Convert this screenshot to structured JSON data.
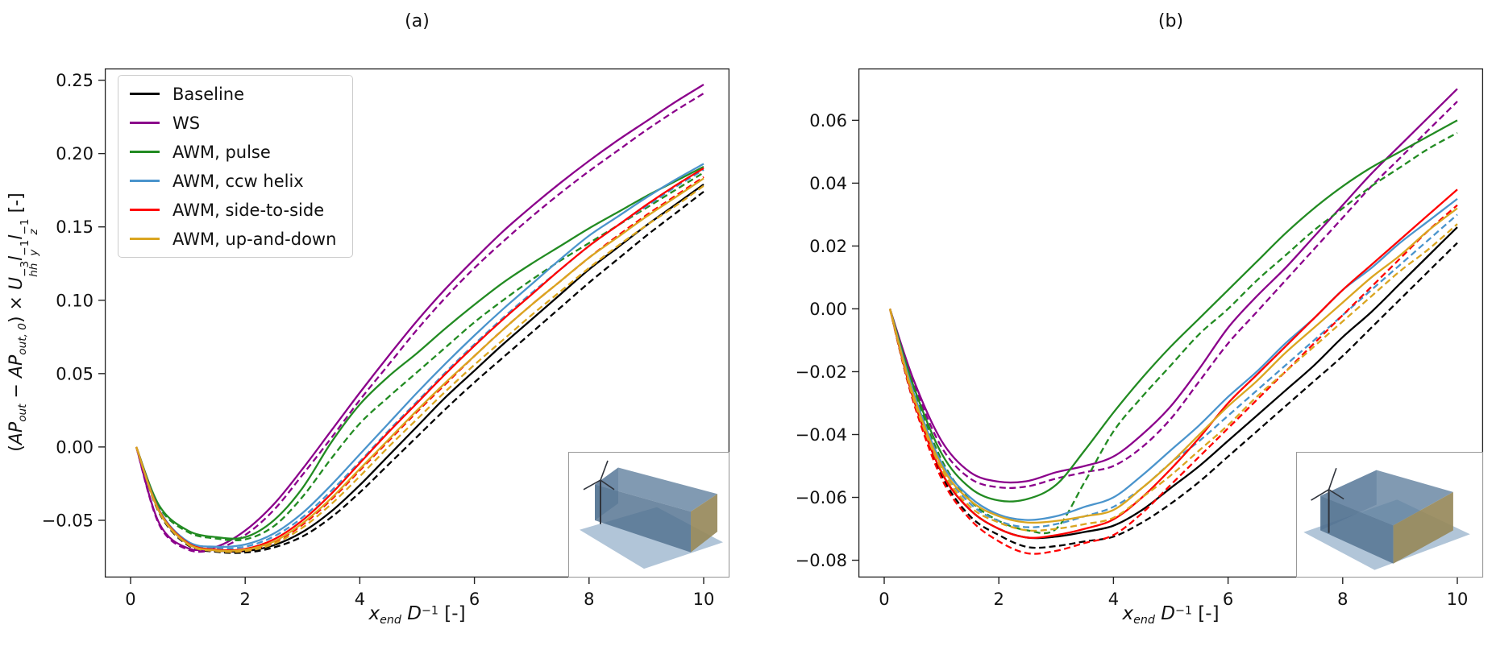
{
  "figure": {
    "background": "#ffffff"
  },
  "legend": {
    "items": [
      {
        "label": "Baseline",
        "color": "#000000"
      },
      {
        "label": "WS",
        "color": "#8B008B"
      },
      {
        "label": "AWM, pulse",
        "color": "#228B22"
      },
      {
        "label": "AWM, ccw helix",
        "color": "#4A94CC"
      },
      {
        "label": "AWM, side-to-side",
        "color": "#FF0000"
      },
      {
        "label": "AWM, up-and-down",
        "color": "#DAA520"
      }
    ]
  },
  "chart_data": [
    {
      "type": "line",
      "title": "(a)",
      "xlabel_segments": [
        {
          "t": "x",
          "i": true,
          "sub": "end"
        },
        {
          "t": " "
        },
        {
          "t": "D",
          "i": true,
          "sup": "−1"
        },
        {
          "t": " [-]"
        }
      ],
      "ylabel_segments": [
        {
          "t": "("
        },
        {
          "t": "AP",
          "i": true,
          "sub": "out"
        },
        {
          "t": " − "
        },
        {
          "t": "AP",
          "i": true,
          "sub": "out, 0"
        },
        {
          "t": ") × "
        },
        {
          "t": "U",
          "i": true,
          "sub": "hh",
          "sup": "−3"
        },
        {
          "t": "l",
          "i": true,
          "sub": "y",
          "sup": "−1"
        },
        {
          "t": "l",
          "i": true,
          "sub": "z",
          "sup": "−1"
        },
        {
          "t": " [-]"
        }
      ],
      "xlim": [
        -0.45,
        10.45
      ],
      "ylim": [
        -0.089,
        0.258
      ],
      "xticks": [
        0,
        2,
        4,
        6,
        8,
        10
      ],
      "yticks": [
        -0.05,
        0.0,
        0.05,
        0.1,
        0.15,
        0.2,
        0.25
      ],
      "x": [
        0.1,
        0.5,
        1,
        1.5,
        2,
        2.5,
        3,
        3.5,
        4,
        4.5,
        5,
        5.5,
        6,
        6.5,
        7,
        7.5,
        8,
        8.5,
        9,
        9.5,
        10
      ],
      "series": [
        {
          "name": "Baseline",
          "color": "#000000",
          "style": "solid",
          "values": [
            0,
            -0.044,
            -0.066,
            -0.0705,
            -0.071,
            -0.067,
            -0.058,
            -0.044,
            -0.026,
            -0.006,
            0.014,
            0.034,
            0.052,
            0.07,
            0.087,
            0.104,
            0.121,
            0.136,
            0.151,
            0.165,
            0.179
          ]
        },
        {
          "name": "Baseline (dashed)",
          "color": "#000000",
          "style": "dashed",
          "values": [
            0,
            -0.045,
            -0.067,
            -0.0715,
            -0.072,
            -0.0685,
            -0.061,
            -0.048,
            -0.031,
            -0.012,
            0.007,
            0.026,
            0.044,
            0.061,
            0.078,
            0.095,
            0.112,
            0.128,
            0.144,
            0.159,
            0.174
          ]
        },
        {
          "name": "WS",
          "color": "#8B008B",
          "style": "solid",
          "values": [
            0,
            -0.052,
            -0.069,
            -0.068,
            -0.057,
            -0.039,
            -0.015,
            0.011,
            0.037,
            0.062,
            0.086,
            0.108,
            0.128,
            0.147,
            0.164,
            0.18,
            0.195,
            0.209,
            0.222,
            0.235,
            0.247
          ]
        },
        {
          "name": "WS (dashed)",
          "color": "#8B008B",
          "style": "dashed",
          "values": [
            0,
            -0.053,
            -0.07,
            -0.0695,
            -0.06,
            -0.043,
            -0.019,
            0.006,
            0.032,
            0.056,
            0.08,
            0.102,
            0.122,
            0.14,
            0.157,
            0.173,
            0.188,
            0.202,
            0.216,
            0.229,
            0.241
          ]
        },
        {
          "name": "AWM, pulse",
          "color": "#228B22",
          "style": "solid",
          "values": [
            0,
            -0.04,
            -0.057,
            -0.0615,
            -0.0615,
            -0.05,
            -0.028,
            0.003,
            0.029,
            0.048,
            0.064,
            0.081,
            0.097,
            0.112,
            0.125,
            0.137,
            0.149,
            0.16,
            0.171,
            0.181,
            0.191
          ]
        },
        {
          "name": "AWM, pulse (dashed)",
          "color": "#228B22",
          "style": "dashed",
          "values": [
            0,
            -0.041,
            -0.058,
            -0.0625,
            -0.063,
            -0.054,
            -0.034,
            -0.008,
            0.016,
            0.034,
            0.051,
            0.068,
            0.085,
            0.1,
            0.114,
            0.127,
            0.139,
            0.151,
            0.163,
            0.175,
            0.187
          ]
        },
        {
          "name": "AWM, ccw helix",
          "color": "#4A94CC",
          "style": "solid",
          "values": [
            0,
            -0.043,
            -0.0645,
            -0.068,
            -0.0665,
            -0.059,
            -0.045,
            -0.026,
            -0.005,
            0.016,
            0.037,
            0.057,
            0.076,
            0.094,
            0.111,
            0.128,
            0.144,
            0.157,
            0.17,
            0.182,
            0.193
          ]
        },
        {
          "name": "AWM, ccw helix (dashed)",
          "color": "#4A94CC",
          "style": "dashed",
          "values": [
            0,
            -0.0435,
            -0.065,
            -0.069,
            -0.068,
            -0.061,
            -0.048,
            -0.03,
            -0.01,
            0.011,
            0.031,
            0.051,
            0.07,
            0.088,
            0.105,
            0.121,
            0.137,
            0.151,
            0.164,
            0.177,
            0.189
          ]
        },
        {
          "name": "AWM, side-to-side",
          "color": "#FF0000",
          "style": "solid",
          "values": [
            0,
            -0.0435,
            -0.0655,
            -0.07,
            -0.0695,
            -0.063,
            -0.05,
            -0.032,
            -0.011,
            0.01,
            0.03,
            0.05,
            0.069,
            0.087,
            0.104,
            0.121,
            0.137,
            0.151,
            0.165,
            0.178,
            0.19
          ]
        },
        {
          "name": "AWM, side-to-side (dashed)",
          "color": "#FF0000",
          "style": "dashed",
          "values": [
            0,
            -0.044,
            -0.066,
            -0.0705,
            -0.0705,
            -0.065,
            -0.053,
            -0.036,
            -0.016,
            0.004,
            0.024,
            0.043,
            0.062,
            0.08,
            0.097,
            0.113,
            0.129,
            0.144,
            0.158,
            0.171,
            0.184
          ]
        },
        {
          "name": "AWM, up-and-down",
          "color": "#DAA520",
          "style": "solid",
          "values": [
            0,
            -0.044,
            -0.066,
            -0.0705,
            -0.07,
            -0.0645,
            -0.052,
            -0.035,
            -0.015,
            0.005,
            0.025,
            0.044,
            0.062,
            0.08,
            0.097,
            0.113,
            0.129,
            0.143,
            0.157,
            0.17,
            0.183
          ]
        },
        {
          "name": "AWM, up-and-down (dashed)",
          "color": "#DAA520",
          "style": "dashed",
          "values": [
            0,
            -0.0445,
            -0.0665,
            -0.071,
            -0.071,
            -0.066,
            -0.055,
            -0.039,
            -0.02,
            0,
            0.019,
            0.038,
            0.056,
            0.073,
            0.09,
            0.106,
            0.122,
            0.137,
            0.151,
            0.164,
            0.178
          ]
        }
      ],
      "inset": {
        "variant": "long",
        "description": "wind turbine with long narrow control volume box on ground plane"
      }
    },
    {
      "type": "line",
      "title": "(b)",
      "xlabel_segments": [
        {
          "t": "x",
          "i": true,
          "sub": "end"
        },
        {
          "t": " "
        },
        {
          "t": "D",
          "i": true,
          "sup": "−1"
        },
        {
          "t": " [-]"
        }
      ],
      "xlim": [
        -0.45,
        10.45
      ],
      "ylim": [
        -0.0855,
        0.0765
      ],
      "xticks": [
        0,
        2,
        4,
        6,
        8,
        10
      ],
      "yticks": [
        -0.08,
        -0.06,
        -0.04,
        -0.02,
        0.0,
        0.02,
        0.04,
        0.06
      ],
      "x": [
        0.1,
        0.5,
        1,
        1.5,
        2,
        2.5,
        3,
        3.5,
        4,
        4.5,
        5,
        5.5,
        6,
        6.5,
        7,
        7.5,
        8,
        8.5,
        9,
        9.5,
        10
      ],
      "series": [
        {
          "name": "Baseline",
          "color": "#000000",
          "style": "solid",
          "values": [
            0,
            -0.028,
            -0.052,
            -0.064,
            -0.07,
            -0.0728,
            -0.0725,
            -0.071,
            -0.069,
            -0.064,
            -0.057,
            -0.05,
            -0.042,
            -0.034,
            -0.026,
            -0.018,
            -0.009,
            -0.001,
            0.008,
            0.017,
            0.026
          ]
        },
        {
          "name": "Baseline (dashed)",
          "color": "#000000",
          "style": "dashed",
          "values": [
            0,
            -0.029,
            -0.053,
            -0.066,
            -0.072,
            -0.0758,
            -0.0755,
            -0.074,
            -0.0725,
            -0.068,
            -0.062,
            -0.055,
            -0.047,
            -0.039,
            -0.031,
            -0.023,
            -0.015,
            -0.006,
            0.003,
            0.012,
            0.021
          ]
        },
        {
          "name": "WS",
          "color": "#8B008B",
          "style": "solid",
          "values": [
            0,
            -0.022,
            -0.042,
            -0.052,
            -0.055,
            -0.0548,
            -0.052,
            -0.05,
            -0.047,
            -0.04,
            -0.031,
            -0.019,
            -0.006,
            0.004,
            0.013,
            0.023,
            0.033,
            0.043,
            0.052,
            0.061,
            0.07
          ]
        },
        {
          "name": "WS (dashed)",
          "color": "#8B008B",
          "style": "dashed",
          "values": [
            0,
            -0.023,
            -0.044,
            -0.054,
            -0.0568,
            -0.0565,
            -0.054,
            -0.052,
            -0.05,
            -0.044,
            -0.035,
            -0.023,
            -0.011,
            -0.001,
            0.009,
            0.019,
            0.029,
            0.039,
            0.048,
            0.057,
            0.066
          ]
        },
        {
          "name": "AWM, pulse",
          "color": "#228B22",
          "style": "solid",
          "values": [
            0,
            -0.024,
            -0.046,
            -0.057,
            -0.061,
            -0.0605,
            -0.056,
            -0.045,
            -0.033,
            -0.022,
            -0.012,
            -0.003,
            0.006,
            0.015,
            0.024,
            0.032,
            0.039,
            0.045,
            0.05,
            0.055,
            0.06
          ]
        },
        {
          "name": "AWM, pulse (dashed)",
          "color": "#228B22",
          "style": "dashed",
          "values": [
            0,
            -0.025,
            -0.048,
            -0.061,
            -0.0675,
            -0.0705,
            -0.07,
            -0.055,
            -0.039,
            -0.028,
            -0.018,
            -0.008,
            0,
            0.009,
            0.017,
            0.025,
            0.032,
            0.039,
            0.045,
            0.051,
            0.056
          ]
        },
        {
          "name": "AWM, ccw helix",
          "color": "#4A94CC",
          "style": "solid",
          "values": [
            0,
            -0.026,
            -0.049,
            -0.06,
            -0.0655,
            -0.0672,
            -0.066,
            -0.063,
            -0.06,
            -0.053,
            -0.045,
            -0.037,
            -0.028,
            -0.02,
            -0.011,
            -0.003,
            0.006,
            0.013,
            0.021,
            0.028,
            0.035
          ]
        },
        {
          "name": "AWM, ccw helix (dashed)",
          "color": "#4A94CC",
          "style": "dashed",
          "values": [
            0,
            -0.027,
            -0.05,
            -0.062,
            -0.0675,
            -0.0695,
            -0.0685,
            -0.066,
            -0.063,
            -0.057,
            -0.049,
            -0.042,
            -0.034,
            -0.026,
            -0.018,
            -0.01,
            -0.002,
            0.006,
            0.014,
            0.022,
            0.03
          ]
        },
        {
          "name": "AWM, side-to-side",
          "color": "#FF0000",
          "style": "solid",
          "values": [
            0,
            -0.028,
            -0.052,
            -0.064,
            -0.07,
            -0.0728,
            -0.072,
            -0.07,
            -0.067,
            -0.06,
            -0.051,
            -0.041,
            -0.03,
            -0.021,
            -0.012,
            -0.003,
            0.006,
            0.014,
            0.022,
            0.03,
            0.038
          ]
        },
        {
          "name": "AWM, side-to-side (dashed)",
          "color": "#FF0000",
          "style": "dashed",
          "values": [
            0,
            -0.029,
            -0.054,
            -0.067,
            -0.074,
            -0.0778,
            -0.077,
            -0.0745,
            -0.072,
            -0.065,
            -0.056,
            -0.047,
            -0.038,
            -0.029,
            -0.02,
            -0.011,
            -0.002,
            0.007,
            0.016,
            0.025,
            0.033
          ]
        },
        {
          "name": "AWM, up-and-down",
          "color": "#DAA520",
          "style": "solid",
          "values": [
            0,
            -0.027,
            -0.05,
            -0.061,
            -0.066,
            -0.068,
            -0.0675,
            -0.066,
            -0.064,
            -0.057,
            -0.049,
            -0.04,
            -0.031,
            -0.023,
            -0.014,
            -0.006,
            0.002,
            0.01,
            0.017,
            0.025,
            0.032
          ]
        },
        {
          "name": "AWM, up-and-down (dashed)",
          "color": "#DAA520",
          "style": "dashed",
          "values": [
            0,
            -0.028,
            -0.051,
            -0.063,
            -0.068,
            -0.0705,
            -0.07,
            -0.0685,
            -0.0665,
            -0.06,
            -0.053,
            -0.045,
            -0.037,
            -0.028,
            -0.02,
            -0.012,
            -0.004,
            0.004,
            0.012,
            0.019,
            0.027
          ]
        }
      ],
      "inset": {
        "variant": "wide",
        "description": "wind turbine with wide flat control volume box on ground plane"
      }
    }
  ]
}
